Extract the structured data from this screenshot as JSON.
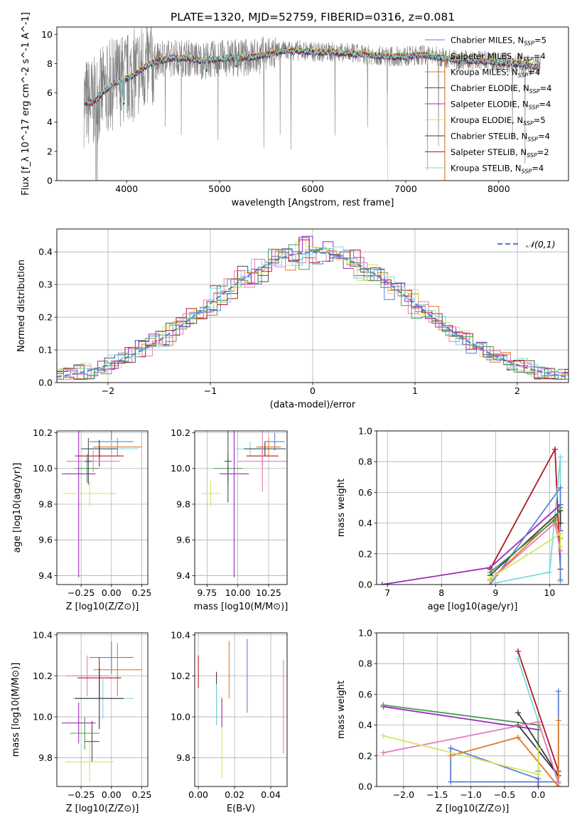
{
  "figure": {
    "suptitle": "PLATE=1320, MJD=52759, FIBERID=0316, z=0.081"
  },
  "colors": {
    "chabrier_miles": "#5b7fd6",
    "salpeter_miles": "#2c7fa0",
    "kroupa_miles": "#e07a26",
    "chabrier_elodie": "#4d4d4d",
    "salpeter_elodie": "#9a2bbf",
    "kroupa_elodie": "#d2e85c",
    "chabrier_stelib": "#3a3a3a",
    "salpeter_stelib": "#b01820",
    "kroupa_stelib": "#7ad9e0",
    "pink": "#e87ab8",
    "green": "#4c9a55",
    "data": "#808080"
  },
  "chart_data": [
    {
      "type": "line",
      "id": "spectrum",
      "xlabel": "wavelength [Angstrom, rest frame]",
      "ylabel": "Flux [f_λ 10^-17 erg cm^-2 s^-1 A^-1]",
      "xlim": [
        3250,
        8750
      ],
      "ylim": [
        0,
        10.5
      ],
      "xticks": [
        4000,
        5000,
        6000,
        7000,
        8000
      ],
      "yticks": [
        0,
        2,
        4,
        6,
        8,
        10
      ],
      "legend_position": "upper-right",
      "legend": [
        {
          "label": "Chabrier MILES, N",
          "sub": "SSP",
          "tail": "=5",
          "color_key": "chabrier_miles"
        },
        {
          "label": "Salpeter MILES, N",
          "sub": "SSP",
          "tail": "=4",
          "color_key": "salpeter_miles"
        },
        {
          "label": "Kroupa MILES, N",
          "sub": "SSP",
          "tail": "=4",
          "color_key": "kroupa_miles"
        },
        {
          "label": "Chabrier ELODIE, N",
          "sub": "SSP",
          "tail": "=4",
          "color_key": "chabrier_elodie"
        },
        {
          "label": "Salpeter ELODIE, N",
          "sub": "SSP",
          "tail": "=4",
          "color_key": "salpeter_elodie"
        },
        {
          "label": "Kroupa ELODIE, N",
          "sub": "SSP",
          "tail": "=5",
          "color_key": "kroupa_elodie"
        },
        {
          "label": "Chabrier STELIB, N",
          "sub": "SSP",
          "tail": "=4",
          "color_key": "chabrier_stelib"
        },
        {
          "label": "Salpeter STELIB, N",
          "sub": "SSP",
          "tail": "=2",
          "color_key": "salpeter_stelib"
        },
        {
          "label": "Kroupa STELIB, N",
          "sub": "SSP",
          "tail": "=4",
          "color_key": "kroupa_stelib"
        }
      ],
      "continuum": {
        "x": [
          3550,
          3650,
          3750,
          3850,
          3950,
          4050,
          4150,
          4250,
          4350,
          4500,
          4650,
          4800,
          4950,
          5100,
          5250,
          5400,
          5550,
          5700,
          5850,
          6000,
          6200,
          6400,
          6600,
          6800,
          7000,
          7200,
          7400,
          7600,
          7800,
          8000,
          8200,
          8400
        ],
        "y": [
          5.4,
          5.3,
          6.1,
          6.6,
          6.9,
          7.1,
          7.6,
          8.0,
          8.2,
          8.4,
          8.4,
          8.2,
          8.3,
          8.4,
          8.4,
          8.5,
          8.7,
          8.9,
          8.9,
          8.8,
          8.8,
          8.7,
          8.6,
          8.5,
          8.5,
          8.6,
          8.4,
          8.2,
          8.2,
          8.1,
          8.0,
          7.8
        ]
      },
      "series": [
        {
          "key": "chabrier_miles",
          "offset": 0.05
        },
        {
          "key": "salpeter_miles",
          "offset": -0.03
        },
        {
          "key": "kroupa_miles",
          "offset": -0.08
        },
        {
          "key": "chabrier_elodie",
          "offset": 0.02
        },
        {
          "key": "salpeter_elodie",
          "offset": -0.05
        },
        {
          "key": "kroupa_elodie",
          "offset": 0.1
        },
        {
          "key": "chabrier_stelib",
          "offset": -0.1
        },
        {
          "key": "salpeter_stelib",
          "offset": 0.04
        },
        {
          "key": "kroupa_stelib",
          "offset": 0.0
        }
      ]
    },
    {
      "type": "step",
      "id": "residuals",
      "xlabel": "(data-model)/error",
      "ylabel": "Normed distribution",
      "xlim": [
        -2.5,
        2.5
      ],
      "ylim": [
        0,
        0.47
      ],
      "xticks": [
        -2,
        -1,
        0,
        1,
        2
      ],
      "yticks": [
        0.0,
        0.1,
        0.2,
        0.3,
        0.4
      ],
      "legend": [
        {
          "label": "𝒩(0,1)",
          "style": "dashed",
          "color_key": "chabrier_miles"
        }
      ],
      "series_keys": [
        "chabrier_miles",
        "kroupa_miles",
        "chabrier_elodie",
        "salpeter_elodie",
        "kroupa_elodie",
        "salpeter_stelib",
        "kroupa_stelib",
        "pink",
        "green"
      ]
    },
    {
      "type": "errorbar",
      "id": "age_vs_Z",
      "xlabel": "Z [log10(Z/Z⊙)]",
      "ylabel": "age [log10(age/yr)]",
      "xlim": [
        -0.45,
        0.3
      ],
      "ylim": [
        9.35,
        10.21
      ],
      "xticks": [
        -0.25,
        0.0,
        0.25
      ],
      "yticks": [
        9.4,
        9.6,
        9.8,
        10.0,
        10.2
      ],
      "points": [
        {
          "x": 0.0,
          "xerr": 0.18,
          "y": 10.15,
          "yerr": 0.07,
          "color_key": "chabrier_miles"
        },
        {
          "x": 0.05,
          "xerr": 0.2,
          "y": 10.12,
          "yerr": 0.05,
          "color_key": "kroupa_miles"
        },
        {
          "x": 0.0,
          "xerr": 0.22,
          "y": 10.11,
          "yerr": 0.05,
          "color_key": "kroupa_stelib"
        },
        {
          "x": -0.1,
          "xerr": 0.15,
          "y": 10.11,
          "yerr": 0.05,
          "color_key": "chabrier_stelib"
        },
        {
          "x": -0.1,
          "xerr": 0.2,
          "y": 10.07,
          "yerr": 0.06,
          "color_key": "salpeter_stelib"
        },
        {
          "x": -0.15,
          "xerr": 0.22,
          "y": 10.04,
          "yerr": 0.06,
          "color_key": "pink"
        },
        {
          "x": -0.2,
          "xerr": 0.1,
          "y": 10.0,
          "yerr": 0.08,
          "color_key": "green"
        },
        {
          "x": -0.27,
          "xerr": 0.14,
          "y": 9.97,
          "yerr": 0.58,
          "color_key": "salpeter_elodie"
        },
        {
          "x": -0.19,
          "xerr": 0.03,
          "y": 10.04,
          "yerr": 0.13,
          "color_key": "chabrier_elodie"
        },
        {
          "x": -0.18,
          "xerr": 0.22,
          "y": 9.86,
          "yerr": 0.07,
          "color_key": "kroupa_elodie"
        }
      ]
    },
    {
      "type": "errorbar",
      "id": "age_vs_mass",
      "xlabel": "mass [log10(M/M⊙)]",
      "ylabel": "",
      "xlim": [
        9.65,
        10.4
      ],
      "ylim": [
        9.35,
        10.21
      ],
      "xticks": [
        9.75,
        10.0,
        10.25
      ],
      "yticks": [
        9.4,
        9.6,
        9.8,
        10.0,
        10.2
      ],
      "points": [
        {
          "x": 10.3,
          "xerr": 0.08,
          "y": 10.15,
          "yerr": 0.05,
          "color_key": "chabrier_miles"
        },
        {
          "x": 10.25,
          "xerr": 0.1,
          "y": 10.12,
          "yerr": 0.05,
          "color_key": "kroupa_miles"
        },
        {
          "x": 10.1,
          "xerr": 0.12,
          "y": 10.11,
          "yerr": 0.04,
          "color_key": "kroupa_stelib"
        },
        {
          "x": 10.22,
          "xerr": 0.17,
          "y": 10.11,
          "yerr": 0.04,
          "color_key": "chabrier_stelib"
        },
        {
          "x": 10.2,
          "xerr": 0.13,
          "y": 10.07,
          "yerr": 0.06,
          "color_key": "salpeter_stelib"
        },
        {
          "x": 10.2,
          "xerr": 0.2,
          "y": 10.04,
          "yerr": 0.17,
          "color_key": "pink"
        },
        {
          "x": 9.92,
          "xerr": 0.12,
          "y": 10.0,
          "yerr": 0.08,
          "color_key": "green"
        },
        {
          "x": 9.97,
          "xerr": 0.12,
          "y": 9.97,
          "yerr": 0.58,
          "color_key": "salpeter_elodie"
        },
        {
          "x": 9.92,
          "xerr": 0.03,
          "y": 10.04,
          "yerr": 0.23,
          "color_key": "chabrier_elodie"
        },
        {
          "x": 9.78,
          "xerr": 0.08,
          "y": 9.86,
          "yerr": 0.07,
          "color_key": "kroupa_elodie"
        }
      ]
    },
    {
      "type": "line",
      "id": "weight_vs_age",
      "xlabel": "age [log10(age/yr)]",
      "ylabel": "mass weight",
      "xlim": [
        6.8,
        10.35
      ],
      "ylim": [
        0,
        1.0
      ],
      "xticks": [
        7,
        8,
        9,
        10
      ],
      "yticks": [
        0.0,
        0.2,
        0.4,
        0.6,
        0.8,
        1.0
      ],
      "series": [
        {
          "color_key": "salpeter_stelib",
          "x": [
            8.9,
            10.1,
            10.2
          ],
          "y": [
            0.1,
            0.88,
            0.1
          ]
        },
        {
          "color_key": "kroupa_stelib",
          "x": [
            9.0,
            10.0,
            10.2,
            10.2
          ],
          "y": [
            0.01,
            0.08,
            0.83,
            0.02
          ]
        },
        {
          "color_key": "salpeter_elodie",
          "x": [
            6.9,
            8.9,
            10.2,
            10.2
          ],
          "y": [
            0.0,
            0.11,
            0.52,
            0.35
          ]
        },
        {
          "color_key": "chabrier_miles",
          "x": [
            8.9,
            10.2,
            10.2
          ],
          "y": [
            0.0,
            0.63,
            0.03
          ]
        },
        {
          "color_key": "chabrier_stelib",
          "x": [
            8.9,
            10.2,
            10.2
          ],
          "y": [
            0.06,
            0.48,
            0.4
          ]
        },
        {
          "color_key": "kroupa_miles",
          "x": [
            8.9,
            10.1,
            10.2
          ],
          "y": [
            0.03,
            0.43,
            0.3
          ]
        },
        {
          "color_key": "pink",
          "x": [
            9.0,
            10.1,
            10.2
          ],
          "y": [
            0.06,
            0.4,
            0.22
          ]
        },
        {
          "color_key": "kroupa_elodie",
          "x": [
            8.9,
            10.2,
            10.2
          ],
          "y": [
            0.04,
            0.33,
            0.25
          ]
        },
        {
          "color_key": "green",
          "x": [
            8.9,
            10.1,
            10.2
          ],
          "y": [
            0.08,
            0.42,
            0.5
          ]
        }
      ]
    },
    {
      "type": "errorbar",
      "id": "mass_vs_Z",
      "xlabel": "Z [log10(Z/Z⊙)]",
      "ylabel": "mass [log10(M/M⊙)]",
      "xlim": [
        -0.45,
        0.3
      ],
      "ylim": [
        9.66,
        10.41
      ],
      "xticks": [
        -0.25,
        0.0,
        0.25
      ],
      "yticks": [
        9.8,
        10.0,
        10.2,
        10.4
      ],
      "points": [
        {
          "x": 0.0,
          "xerr": 0.18,
          "y": 10.29,
          "yerr": 0.08,
          "color_key": "chabrier_miles"
        },
        {
          "x": 0.05,
          "xerr": 0.2,
          "y": 10.23,
          "yerr": 0.13,
          "color_key": "kroupa_miles"
        },
        {
          "x": -0.2,
          "xerr": 0.18,
          "y": 10.2,
          "yerr": 0.1,
          "color_key": "pink"
        },
        {
          "x": -0.1,
          "xerr": 0.18,
          "y": 10.19,
          "yerr": 0.1,
          "color_key": "salpeter_stelib"
        },
        {
          "x": -0.07,
          "xerr": 0.25,
          "y": 10.09,
          "yerr": 0.1,
          "color_key": "kroupa_stelib"
        },
        {
          "x": -0.1,
          "xerr": 0.2,
          "y": 10.09,
          "yerr": 0.15,
          "color_key": "chabrier_stelib"
        },
        {
          "x": -0.27,
          "xerr": 0.14,
          "y": 9.97,
          "yerr": 0.1,
          "color_key": "salpeter_elodie"
        },
        {
          "x": -0.22,
          "xerr": 0.12,
          "y": 9.92,
          "yerr": 0.08,
          "color_key": "green"
        },
        {
          "x": -0.16,
          "xerr": 0.06,
          "y": 9.88,
          "yerr": 0.1,
          "color_key": "chabrier_elodie"
        },
        {
          "x": -0.18,
          "xerr": 0.2,
          "y": 9.78,
          "yerr": 0.1,
          "color_key": "kroupa_elodie"
        }
      ]
    },
    {
      "type": "errorbar",
      "id": "mass_vs_ebv",
      "xlabel": "E(B-V)",
      "ylabel": "",
      "xlim": [
        -0.002,
        0.049
      ],
      "ylim": [
        9.66,
        10.41
      ],
      "xticks": [
        0.0,
        0.02,
        0.04
      ],
      "yticks": [
        9.8,
        10.0,
        10.2,
        10.4
      ],
      "points": [
        {
          "x": 0.0,
          "y": 10.22,
          "yerr": 0.08,
          "color_key": "salpeter_stelib"
        },
        {
          "x": 0.01,
          "y": 10.09,
          "yerr": 0.13,
          "color_key": "chabrier_stelib"
        },
        {
          "x": 0.01,
          "y": 10.06,
          "yerr": 0.1,
          "color_key": "kroupa_stelib"
        },
        {
          "x": 0.013,
          "y": 9.9,
          "yerr": 0.2,
          "color_key": "kroupa_elodie"
        },
        {
          "x": 0.013,
          "y": 10.02,
          "yerr": 0.07,
          "color_key": "salpeter_elodie"
        },
        {
          "x": 0.017,
          "y": 10.23,
          "yerr": 0.14,
          "color_key": "kroupa_miles"
        },
        {
          "x": 0.027,
          "y": 10.2,
          "yerr": 0.18,
          "color_key": "chabrier_miles"
        },
        {
          "x": 0.047,
          "y": 10.05,
          "yerr": 0.23,
          "color_key": "pink"
        }
      ]
    },
    {
      "type": "line",
      "id": "weight_vs_Z",
      "xlabel": "Z [log10(Z/Z⊙)]",
      "ylabel": "mass weight",
      "xlim": [
        -2.4,
        0.45
      ],
      "ylim": [
        0,
        1.0
      ],
      "xticks": [
        -2.0,
        -1.5,
        -1.0,
        -0.5,
        0.0
      ],
      "yticks": [
        0.0,
        0.2,
        0.4,
        0.6,
        0.8,
        1.0
      ],
      "series": [
        {
          "color_key": "salpeter_stelib",
          "x": [
            -0.3,
            0.3,
            0.3
          ],
          "y": [
            0.88,
            0.1,
            0.0
          ]
        },
        {
          "color_key": "kroupa_stelib",
          "x": [
            -0.3,
            0.3
          ],
          "y": [
            0.83,
            0.02
          ]
        },
        {
          "color_key": "salpeter_elodie",
          "x": [
            -2.3,
            0.0,
            0.0
          ],
          "y": [
            0.52,
            0.37,
            0.0
          ]
        },
        {
          "color_key": "green",
          "x": [
            -2.3,
            0.0,
            0.0
          ],
          "y": [
            0.53,
            0.4,
            0.1
          ]
        },
        {
          "color_key": "chabrier_stelib",
          "x": [
            -0.3,
            0.3,
            -0.3
          ],
          "y": [
            0.48,
            0.07,
            0.4
          ]
        },
        {
          "color_key": "chabrier_miles",
          "x": [
            0.3,
            0.3,
            -1.3,
            -1.3,
            0.0
          ],
          "y": [
            0.62,
            0.03,
            0.03,
            0.25,
            0.05
          ]
        },
        {
          "color_key": "kroupa_miles",
          "x": [
            -1.3,
            -0.3,
            0.3,
            0.3
          ],
          "y": [
            0.2,
            0.32,
            0.0,
            0.43
          ]
        },
        {
          "color_key": "pink",
          "x": [
            -2.3,
            0.0,
            0.3
          ],
          "y": [
            0.22,
            0.42,
            0.03
          ]
        },
        {
          "color_key": "kroupa_elodie",
          "x": [
            -2.3,
            0.0,
            0.0
          ],
          "y": [
            0.33,
            0.08,
            0.25
          ]
        }
      ]
    }
  ]
}
